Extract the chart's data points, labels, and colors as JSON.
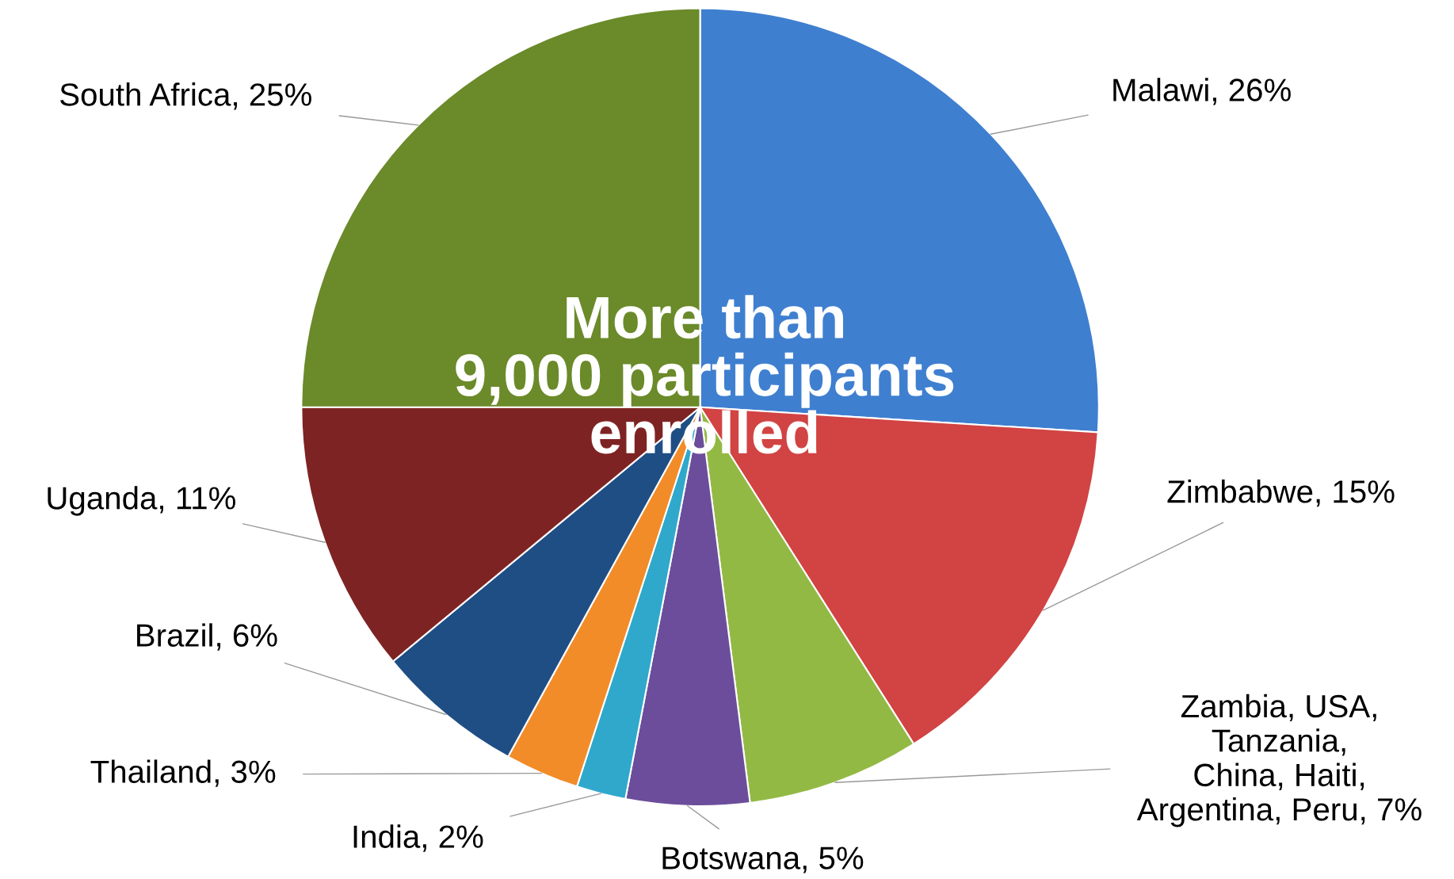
{
  "chart_data": {
    "type": "pie",
    "categories": [
      "Malawi",
      "Zimbabwe",
      "Zambia, USA,\nTanzania,\nChina, Haiti,\nArgentina, Peru",
      "Botswana",
      "India",
      "Thailand",
      "Brazil",
      "Uganda",
      "South Africa"
    ],
    "values": [
      26,
      15,
      7,
      5,
      2,
      3,
      6,
      11,
      25
    ],
    "value_labels": [
      "26%",
      "15%",
      "7%",
      "5%",
      "2%",
      "3%",
      "6%",
      "11%",
      "25%"
    ],
    "colors": [
      "#3f7fd0",
      "#d24343",
      "#93b945",
      "#6c4d9b",
      "#2fa8cc",
      "#f28c28",
      "#1f4e85",
      "#7e2323",
      "#6b8a2a"
    ],
    "annotations": [
      "More than\n9,000 participants\nenrolled"
    ]
  }
}
